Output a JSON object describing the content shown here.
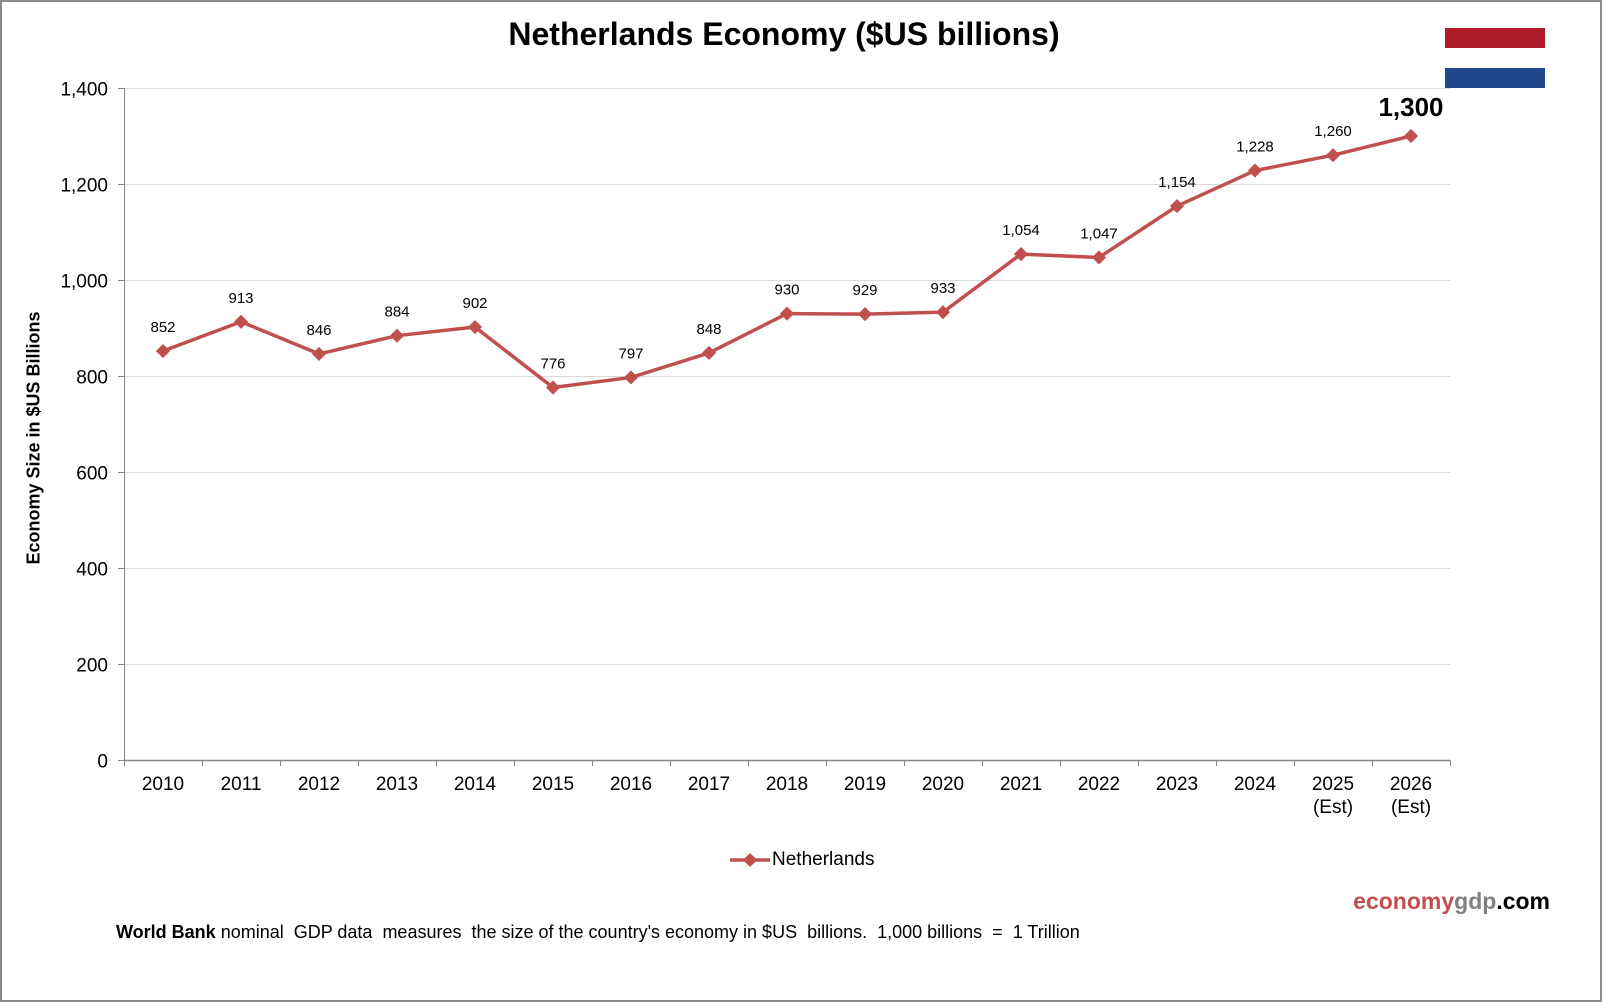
{
  "chart_data": {
    "type": "line",
    "title": "Netherlands Economy ($US billions)",
    "xlabel": "",
    "ylabel": "Economy Size in $US Billions",
    "ylim": [
      0,
      1400
    ],
    "yticks": [
      0,
      200,
      400,
      600,
      800,
      1000,
      1200,
      1400
    ],
    "ytick_labels": [
      "0",
      "200",
      "400",
      "600",
      "800",
      "1,000",
      "1,200",
      "1,400"
    ],
    "grid": true,
    "legend_position": "bottom-center",
    "categories": [
      [
        "2010"
      ],
      [
        "2011"
      ],
      [
        "2012"
      ],
      [
        "2013"
      ],
      [
        "2014"
      ],
      [
        "2015"
      ],
      [
        "2016"
      ],
      [
        "2017"
      ],
      [
        "2018"
      ],
      [
        "2019"
      ],
      [
        "2020"
      ],
      [
        "2021"
      ],
      [
        "2022"
      ],
      [
        "2023"
      ],
      [
        "2024"
      ],
      [
        "2025",
        "(Est)"
      ],
      [
        "2026",
        "(Est)"
      ]
    ],
    "series": [
      {
        "name": "Netherlands",
        "color": "#c0504d",
        "values": [
          852,
          913,
          846,
          884,
          902,
          776,
          797,
          848,
          930,
          929,
          933,
          1054,
          1047,
          1154,
          1228,
          1260,
          1300
        ],
        "data_labels": [
          "852",
          "913",
          "846",
          "884",
          "902",
          "776",
          "797",
          "848",
          "930",
          "929",
          "933",
          "1,054",
          "1,047",
          "1,154",
          "1,228",
          "1,260",
          "1,300"
        ],
        "highlighted_last_label": true
      }
    ]
  },
  "flag": {
    "colors": [
      "#ae1c28",
      "#ffffff",
      "#21468b"
    ]
  },
  "legend": {
    "label": "Netherlands"
  },
  "brand": {
    "part1": "economy",
    "part2": "gdp",
    "part3": ".com",
    "color1": "#c0504d",
    "color2": "#808080",
    "color3": "#000000"
  },
  "footnote": {
    "bold": "World Bank",
    "text": " nominal  GDP data  measures  the size of the country's economy in $US  billions.  1,000 billions  =  1 Trillion"
  }
}
